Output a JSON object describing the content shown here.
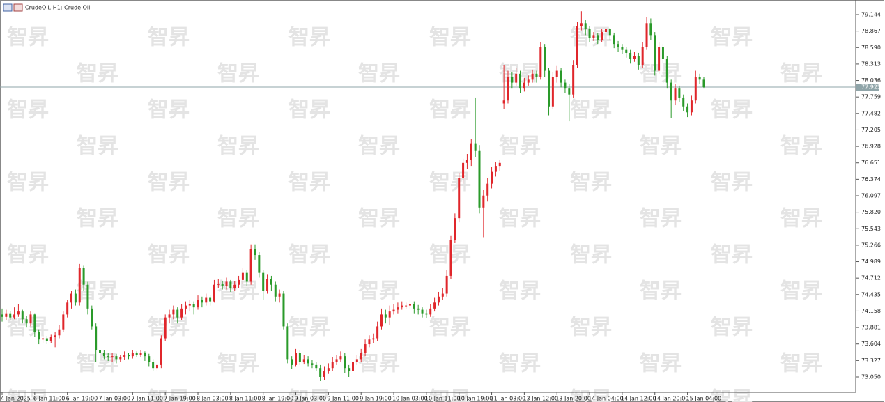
{
  "chart_data": {
    "type": "candlestick",
    "title": "CrudeOil, H1:  Crude Oil",
    "watermark": "智昇",
    "up_color": "#e0262b",
    "down_color": "#2a9a2a",
    "last_price": 77.925,
    "ylim": [
      72.792,
      79.355
    ],
    "yticks": [
      79.144,
      78.867,
      {
        "value": 78.59,
        "label": "78.590"
      },
      78.313,
      78.036,
      77.759,
      77.482,
      77.205,
      76.928,
      76.651,
      76.374,
      76.097,
      {
        "value": 75.82,
        "label": "75.820"
      },
      75.543,
      75.266,
      74.989,
      74.712,
      74.435,
      74.158,
      73.881,
      73.604,
      73.327,
      {
        "value": 73.05,
        "label": "73.050"
      }
    ],
    "categories": [
      "4 Jan 2025",
      null,
      null,
      null,
      null,
      null,
      null,
      null,
      "6 Jan 11:00",
      null,
      null,
      null,
      null,
      null,
      null,
      null,
      "6 Jan 19:00",
      null,
      null,
      null,
      null,
      null,
      null,
      null,
      "7 Jan 03:00",
      null,
      null,
      null,
      null,
      null,
      null,
      null,
      "7 Jan 11:00",
      null,
      null,
      null,
      null,
      null,
      null,
      null,
      "7 Jan 19:00",
      null,
      null,
      null,
      null,
      null,
      null,
      null,
      "8 Jan 03:00",
      null,
      null,
      null,
      null,
      null,
      null,
      null,
      "8 Jan 11:00",
      null,
      null,
      null,
      null,
      null,
      null,
      null,
      "8 Jan 19:00",
      null,
      null,
      null,
      null,
      null,
      null,
      null,
      "9 Jan 03:00",
      null,
      null,
      null,
      null,
      null,
      null,
      null,
      "9 Jan 11:00",
      null,
      null,
      null,
      null,
      null,
      null,
      null,
      "9 Jan 19:00",
      null,
      null,
      null,
      null,
      null,
      null,
      null,
      "10 Jan 03:00",
      null,
      null,
      null,
      null,
      null,
      null,
      null,
      "10 Jan 11:00",
      null,
      null,
      null,
      null,
      null,
      null,
      null,
      "10 Jan 19:00",
      null,
      null,
      null,
      null,
      null,
      null,
      null,
      "11 Jan 03:00",
      null,
      null,
      null,
      null,
      null,
      null,
      null,
      "13 Jan 12:00",
      null,
      null,
      null,
      null,
      null,
      null,
      null,
      "13 Jan 20:00",
      null,
      null,
      null,
      null,
      null,
      null,
      null,
      "14 Jan 04:00",
      null,
      null,
      null,
      null,
      null,
      null,
      null,
      "14 Jan 12:00",
      null,
      null,
      null,
      null,
      null,
      null,
      null,
      "14 Jan 20:00",
      null,
      null,
      null,
      null,
      null,
      null,
      null,
      "15 Jan 04:00",
      null,
      null,
      null,
      null
    ],
    "ohlc": [
      [
        74.1,
        74.2,
        73.98,
        74.06
      ],
      [
        74.06,
        74.18,
        74.0,
        74.12
      ],
      [
        74.12,
        74.16,
        74.0,
        74.05
      ],
      [
        74.05,
        74.22,
        74.02,
        74.1
      ],
      [
        74.1,
        74.28,
        74.06,
        74.15
      ],
      [
        74.15,
        74.18,
        73.95,
        74.02
      ],
      [
        74.02,
        74.08,
        73.88,
        73.95
      ],
      [
        73.95,
        74.15,
        73.9,
        74.1
      ],
      [
        74.1,
        74.12,
        73.72,
        73.8
      ],
      [
        73.8,
        73.85,
        73.6,
        73.68
      ],
      [
        73.68,
        73.75,
        73.62,
        73.7
      ],
      [
        73.7,
        73.74,
        73.6,
        73.65
      ],
      [
        73.65,
        73.76,
        73.62,
        73.72
      ],
      [
        73.72,
        73.8,
        73.55,
        73.75
      ],
      [
        73.75,
        73.92,
        73.7,
        73.85
      ],
      [
        73.85,
        74.15,
        73.8,
        74.1
      ],
      [
        74.1,
        74.35,
        74.05,
        74.3
      ],
      [
        74.3,
        74.5,
        74.2,
        74.45
      ],
      [
        74.45,
        74.52,
        74.25,
        74.3
      ],
      [
        74.3,
        74.95,
        74.25,
        74.88
      ],
      [
        74.88,
        74.92,
        74.5,
        74.6
      ],
      [
        74.6,
        74.65,
        74.1,
        74.2
      ],
      [
        74.2,
        74.25,
        73.85,
        73.9
      ],
      [
        73.9,
        73.95,
        73.3,
        73.5
      ],
      [
        73.5,
        73.62,
        73.4,
        73.45
      ],
      [
        73.45,
        73.5,
        73.35,
        73.4
      ],
      [
        73.4,
        73.46,
        73.32,
        73.38
      ],
      [
        73.38,
        73.45,
        73.3,
        73.4
      ],
      [
        73.4,
        73.44,
        73.28,
        73.35
      ],
      [
        73.35,
        73.42,
        73.3,
        73.38
      ],
      [
        73.38,
        73.48,
        73.34,
        73.42
      ],
      [
        73.42,
        73.46,
        73.35,
        73.4
      ],
      [
        73.4,
        73.5,
        73.36,
        73.45
      ],
      [
        73.45,
        73.48,
        73.38,
        73.42
      ],
      [
        73.42,
        73.5,
        73.38,
        73.45
      ],
      [
        73.45,
        73.48,
        73.32,
        73.4
      ],
      [
        73.4,
        73.44,
        73.22,
        73.3
      ],
      [
        73.3,
        73.35,
        73.15,
        73.2
      ],
      [
        73.2,
        73.3,
        73.15,
        73.25
      ],
      [
        73.25,
        73.75,
        73.2,
        73.7
      ],
      [
        73.7,
        74.1,
        73.65,
        74.05
      ],
      [
        74.05,
        74.18,
        73.95,
        74.1
      ],
      [
        74.1,
        74.25,
        74.02,
        74.18
      ],
      [
        74.18,
        74.22,
        73.95,
        74.05
      ],
      [
        74.05,
        74.28,
        74.0,
        74.2
      ],
      [
        74.2,
        74.32,
        74.1,
        74.25
      ],
      [
        74.25,
        74.35,
        74.15,
        74.28
      ],
      [
        74.28,
        74.32,
        74.1,
        74.22
      ],
      [
        74.22,
        74.42,
        74.18,
        74.35
      ],
      [
        74.35,
        74.4,
        74.22,
        74.3
      ],
      [
        74.3,
        74.45,
        74.25,
        74.38
      ],
      [
        74.38,
        74.42,
        74.25,
        74.32
      ],
      [
        74.32,
        74.68,
        74.3,
        74.6
      ],
      [
        74.6,
        74.7,
        74.55,
        74.62
      ],
      [
        74.62,
        74.66,
        74.52,
        74.58
      ],
      [
        74.58,
        74.72,
        74.52,
        74.65
      ],
      [
        74.65,
        74.68,
        74.48,
        74.55
      ],
      [
        74.55,
        74.66,
        74.5,
        74.6
      ],
      [
        74.6,
        74.75,
        74.55,
        74.68
      ],
      [
        74.68,
        74.88,
        74.62,
        74.8
      ],
      [
        74.8,
        74.85,
        74.58,
        74.65
      ],
      [
        74.65,
        75.28,
        74.6,
        75.2
      ],
      [
        75.2,
        75.28,
        75.02,
        75.1
      ],
      [
        75.1,
        75.15,
        74.72,
        74.8
      ],
      [
        74.8,
        74.85,
        74.35,
        74.5
      ],
      [
        74.5,
        74.78,
        74.45,
        74.7
      ],
      [
        74.7,
        74.75,
        74.5,
        74.6
      ],
      [
        74.6,
        74.65,
        74.32,
        74.4
      ],
      [
        74.4,
        74.52,
        74.3,
        74.45
      ],
      [
        74.45,
        74.5,
        73.85,
        73.9
      ],
      [
        73.9,
        73.95,
        73.28,
        73.35
      ],
      [
        73.35,
        73.4,
        73.18,
        73.25
      ],
      [
        73.25,
        73.52,
        73.22,
        73.45
      ],
      [
        73.45,
        73.5,
        73.25,
        73.3
      ],
      [
        73.3,
        73.42,
        73.26,
        73.35
      ],
      [
        73.35,
        73.4,
        73.22,
        73.28
      ],
      [
        73.28,
        73.34,
        73.2,
        73.25
      ],
      [
        73.25,
        73.3,
        73.15,
        73.2
      ],
      [
        73.2,
        73.25,
        72.98,
        73.05
      ],
      [
        73.05,
        73.22,
        73.0,
        73.15
      ],
      [
        73.15,
        73.28,
        73.1,
        73.2
      ],
      [
        73.2,
        73.38,
        73.15,
        73.3
      ],
      [
        73.3,
        73.42,
        73.25,
        73.35
      ],
      [
        73.35,
        73.48,
        73.3,
        73.4
      ],
      [
        73.4,
        73.45,
        73.12,
        73.2
      ],
      [
        73.2,
        73.25,
        73.05,
        73.15
      ],
      [
        73.15,
        73.36,
        73.1,
        73.3
      ],
      [
        73.3,
        73.42,
        73.25,
        73.35
      ],
      [
        73.35,
        73.52,
        73.3,
        73.45
      ],
      [
        73.45,
        73.68,
        73.4,
        73.6
      ],
      [
        73.6,
        73.75,
        73.55,
        73.68
      ],
      [
        73.68,
        73.78,
        73.62,
        73.7
      ],
      [
        73.7,
        73.98,
        73.65,
        73.9
      ],
      [
        73.9,
        74.2,
        73.85,
        74.1
      ],
      [
        74.1,
        74.18,
        73.95,
        74.05
      ],
      [
        74.05,
        74.25,
        73.92,
        74.15
      ],
      [
        74.15,
        74.28,
        74.1,
        74.18
      ],
      [
        74.18,
        74.3,
        74.12,
        74.22
      ],
      [
        74.22,
        74.32,
        74.18,
        74.25
      ],
      [
        74.25,
        74.3,
        74.2,
        74.25
      ],
      [
        74.25,
        74.35,
        74.2,
        74.28
      ],
      [
        74.28,
        74.32,
        74.12,
        74.2
      ],
      [
        74.2,
        74.26,
        74.1,
        74.18
      ],
      [
        74.18,
        74.22,
        74.05,
        74.12
      ],
      [
        74.12,
        74.18,
        74.04,
        74.1
      ],
      [
        74.1,
        74.28,
        74.06,
        74.2
      ],
      [
        74.2,
        74.38,
        74.15,
        74.3
      ],
      [
        74.3,
        74.48,
        74.25,
        74.4
      ],
      [
        74.4,
        74.55,
        74.35,
        74.45
      ],
      [
        74.45,
        74.85,
        74.4,
        74.75
      ],
      [
        74.75,
        75.42,
        74.7,
        75.35
      ],
      [
        75.35,
        75.8,
        75.3,
        75.72
      ],
      [
        75.72,
        76.48,
        75.65,
        76.4
      ],
      [
        76.4,
        76.72,
        76.3,
        76.65
      ],
      [
        76.65,
        76.8,
        76.55,
        76.7
      ],
      [
        76.7,
        77.05,
        76.6,
        76.98
      ],
      [
        76.98,
        77.75,
        76.75,
        76.85
      ],
      [
        76.85,
        76.95,
        75.8,
        75.9
      ],
      [
        75.9,
        76.2,
        75.4,
        76.1
      ],
      [
        76.1,
        76.4,
        76.0,
        76.3
      ],
      [
        76.3,
        76.58,
        76.22,
        76.5
      ],
      [
        76.5,
        76.66,
        76.42,
        76.6
      ],
      [
        76.6,
        76.7,
        76.52,
        76.65
      ],
      [
        77.65,
        78.3,
        77.55,
        77.7
      ],
      [
        77.7,
        78.2,
        77.65,
        78.1
      ],
      [
        78.1,
        78.18,
        77.9,
        78.0
      ],
      [
        78.0,
        78.25,
        77.95,
        78.15
      ],
      [
        78.15,
        78.2,
        77.82,
        77.9
      ],
      [
        77.9,
        78.08,
        77.85,
        78.0
      ],
      [
        78.0,
        78.12,
        77.95,
        78.05
      ],
      [
        78.05,
        78.22,
        78.0,
        78.15
      ],
      [
        78.15,
        78.2,
        78.0,
        78.1
      ],
      [
        78.1,
        78.68,
        78.05,
        78.6
      ],
      [
        78.6,
        78.65,
        78.1,
        78.2
      ],
      [
        78.2,
        78.25,
        77.45,
        77.6
      ],
      [
        77.6,
        78.18,
        77.55,
        78.1
      ],
      [
        78.1,
        78.28,
        78.0,
        78.2
      ],
      [
        78.2,
        78.25,
        77.92,
        78.0
      ],
      [
        78.0,
        78.05,
        77.82,
        77.9
      ],
      [
        77.9,
        77.98,
        77.35,
        77.8
      ],
      [
        77.8,
        78.38,
        77.75,
        78.3
      ],
      [
        78.3,
        79.02,
        78.25,
        78.95
      ],
      [
        78.95,
        79.2,
        78.88,
        79.0
      ],
      [
        79.0,
        79.05,
        78.8,
        78.9
      ],
      [
        78.9,
        78.95,
        78.68,
        78.75
      ],
      [
        78.75,
        78.85,
        78.7,
        78.8
      ],
      [
        78.8,
        78.84,
        78.65,
        78.72
      ],
      [
        78.72,
        78.9,
        78.68,
        78.85
      ],
      [
        78.85,
        78.95,
        78.8,
        78.9
      ],
      [
        78.9,
        78.92,
        78.72,
        78.8
      ],
      [
        78.8,
        78.84,
        78.58,
        78.65
      ],
      [
        78.65,
        78.7,
        78.52,
        78.6
      ],
      [
        78.6,
        78.65,
        78.48,
        78.55
      ],
      [
        78.55,
        78.6,
        78.42,
        78.5
      ],
      [
        78.5,
        78.55,
        78.32,
        78.4
      ],
      [
        78.4,
        78.52,
        78.35,
        78.45
      ],
      [
        78.45,
        78.5,
        78.22,
        78.3
      ],
      [
        78.3,
        78.68,
        78.25,
        78.6
      ],
      [
        78.6,
        79.1,
        78.55,
        79.0
      ],
      [
        79.0,
        79.08,
        78.72,
        78.8
      ],
      [
        78.8,
        78.85,
        78.12,
        78.2
      ],
      [
        78.2,
        78.68,
        78.15,
        78.6
      ],
      [
        78.6,
        78.65,
        78.32,
        78.4
      ],
      [
        78.4,
        78.45,
        77.9,
        78.0
      ],
      [
        78.0,
        78.05,
        77.4,
        77.7
      ],
      [
        77.7,
        77.98,
        77.62,
        77.9
      ],
      [
        77.9,
        77.95,
        77.68,
        77.75
      ],
      [
        77.75,
        77.8,
        77.52,
        77.6
      ],
      [
        77.6,
        77.65,
        77.42,
        77.5
      ],
      [
        77.5,
        77.78,
        77.45,
        77.7
      ],
      [
        77.7,
        78.2,
        77.65,
        78.1
      ],
      [
        78.1,
        78.15,
        77.98,
        78.05
      ],
      [
        78.05,
        78.1,
        77.9,
        77.925
      ]
    ]
  }
}
